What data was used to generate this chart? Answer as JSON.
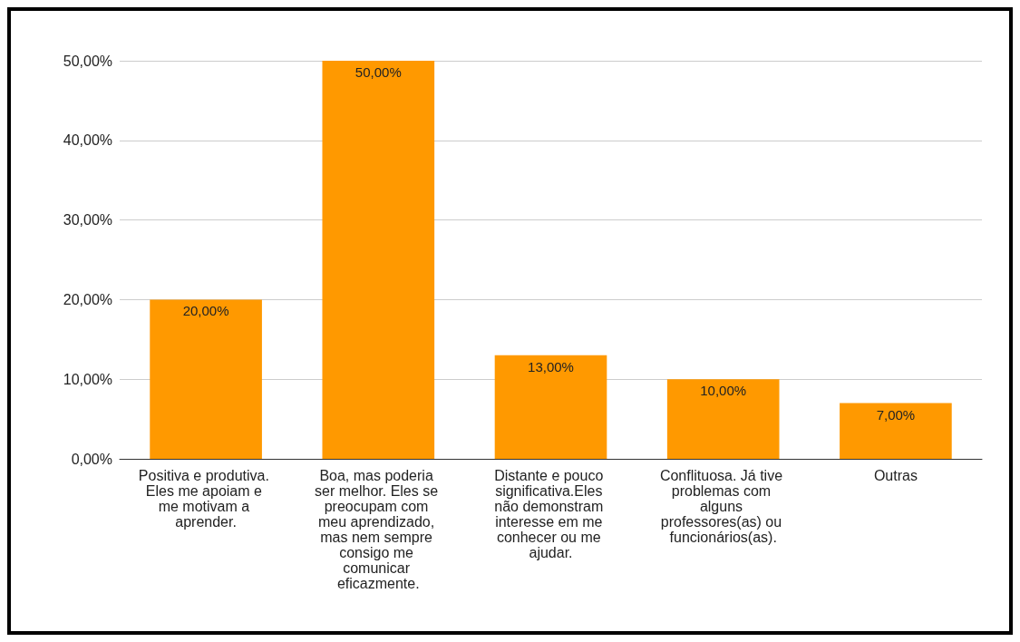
{
  "chart_data": {
    "type": "bar",
    "categories": [
      "Positiva e produtiva. Eles me apoiam e me motivam a aprender.",
      "Boa, mas poderia ser melhor. Eles se preocupam com meu aprendizado, mas nem sempre consigo me comunicar eficazmente.",
      "Distante e pouco significativa.Eles não demonstram interesse em me conhecer ou me ajudar.",
      "Conflituosa. Já tive problemas com alguns professores(as) ou funcionários(as).",
      "Outras"
    ],
    "values": [
      20,
      50,
      13,
      10,
      7
    ],
    "value_labels": [
      "20,00%",
      "50,00%",
      "13,00%",
      "10,00%",
      "7,00%"
    ],
    "color": "#ff9900",
    "ylim": [
      0,
      50
    ],
    "yticks": [
      {
        "value": 0,
        "label": "0,00%"
      },
      {
        "value": 10,
        "label": "10,00%"
      },
      {
        "value": 20,
        "label": "20,00%"
      },
      {
        "value": 30,
        "label": "30,00%"
      },
      {
        "value": 40,
        "label": "40,00%"
      },
      {
        "value": 50,
        "label": "50,00%"
      }
    ],
    "grid": "y"
  }
}
